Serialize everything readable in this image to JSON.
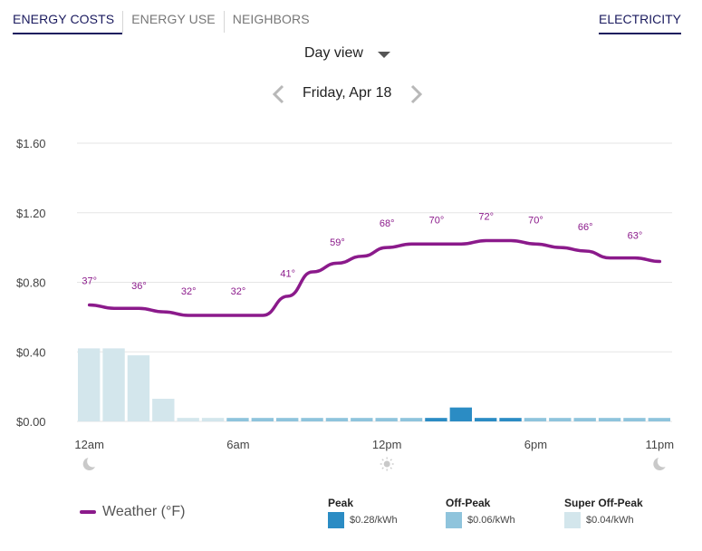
{
  "tabs": [
    {
      "label": "ENERGY COSTS",
      "active": true
    },
    {
      "label": "ENERGY USE",
      "active": false
    },
    {
      "label": "NEIGHBORS",
      "active": false
    }
  ],
  "fuel_tab": {
    "label": "ELECTRICITY",
    "active": true
  },
  "view_select": {
    "value": "Day view",
    "icon": "caret-down-icon"
  },
  "date_nav": {
    "date": "Friday, Apr 18",
    "prev_icon": "chevron-left-icon",
    "next_icon": "chevron-right-icon"
  },
  "legend": {
    "weather": {
      "label": "Weather (°F)",
      "color": "#8b1a8b"
    },
    "rates": [
      {
        "name": "Peak",
        "price": "$0.28/kWh",
        "color": "#2b8cc4"
      },
      {
        "name": "Off-Peak",
        "price": "$0.06/kWh",
        "color": "#8fc4dc"
      },
      {
        "name": "Super Off-Peak",
        "price": "$0.04/kWh",
        "color": "#d3e6ec"
      }
    ]
  },
  "chart_data": {
    "type": "bar",
    "y_ticks": [
      "$1.60",
      "$1.20",
      "$0.80",
      "$0.40",
      "$0.00"
    ],
    "ylim": [
      0,
      1.6
    ],
    "grid": true,
    "x_ticks": [
      {
        "label": "12am",
        "icon": "moon-icon",
        "hour": 0
      },
      {
        "label": "6am",
        "icon": "",
        "hour": 6
      },
      {
        "label": "12pm",
        "icon": "sun-icon",
        "hour": 12
      },
      {
        "label": "6pm",
        "icon": "",
        "hour": 18
      },
      {
        "label": "11pm",
        "icon": "moon-icon",
        "hour": 23
      }
    ],
    "bars": [
      {
        "hour": 0,
        "cost": 0.42,
        "rate": "Super Off-Peak"
      },
      {
        "hour": 1,
        "cost": 0.42,
        "rate": "Super Off-Peak"
      },
      {
        "hour": 2,
        "cost": 0.38,
        "rate": "Super Off-Peak"
      },
      {
        "hour": 3,
        "cost": 0.13,
        "rate": "Super Off-Peak"
      },
      {
        "hour": 4,
        "cost": 0.02,
        "rate": "Super Off-Peak"
      },
      {
        "hour": 5,
        "cost": 0.02,
        "rate": "Super Off-Peak"
      },
      {
        "hour": 6,
        "cost": 0.02,
        "rate": "Off-Peak"
      },
      {
        "hour": 7,
        "cost": 0.02,
        "rate": "Off-Peak"
      },
      {
        "hour": 8,
        "cost": 0.02,
        "rate": "Off-Peak"
      },
      {
        "hour": 9,
        "cost": 0.02,
        "rate": "Off-Peak"
      },
      {
        "hour": 10,
        "cost": 0.02,
        "rate": "Off-Peak"
      },
      {
        "hour": 11,
        "cost": 0.02,
        "rate": "Off-Peak"
      },
      {
        "hour": 12,
        "cost": 0.02,
        "rate": "Off-Peak"
      },
      {
        "hour": 13,
        "cost": 0.02,
        "rate": "Off-Peak"
      },
      {
        "hour": 14,
        "cost": 0.02,
        "rate": "Peak"
      },
      {
        "hour": 15,
        "cost": 0.08,
        "rate": "Peak"
      },
      {
        "hour": 16,
        "cost": 0.02,
        "rate": "Peak"
      },
      {
        "hour": 17,
        "cost": 0.02,
        "rate": "Peak"
      },
      {
        "hour": 18,
        "cost": 0.02,
        "rate": "Off-Peak"
      },
      {
        "hour": 19,
        "cost": 0.02,
        "rate": "Off-Peak"
      },
      {
        "hour": 20,
        "cost": 0.02,
        "rate": "Off-Peak"
      },
      {
        "hour": 21,
        "cost": 0.02,
        "rate": "Off-Peak"
      },
      {
        "hour": 22,
        "cost": 0.02,
        "rate": "Off-Peak"
      },
      {
        "hour": 23,
        "cost": 0.02,
        "rate": "Off-Peak"
      }
    ],
    "weather_line": [
      {
        "hour": 0,
        "y": 0.67
      },
      {
        "hour": 1,
        "y": 0.65
      },
      {
        "hour": 2,
        "y": 0.65
      },
      {
        "hour": 3,
        "y": 0.63
      },
      {
        "hour": 4,
        "y": 0.61
      },
      {
        "hour": 5,
        "y": 0.61
      },
      {
        "hour": 6,
        "y": 0.61
      },
      {
        "hour": 7,
        "y": 0.61
      },
      {
        "hour": 8,
        "y": 0.72
      },
      {
        "hour": 9,
        "y": 0.86
      },
      {
        "hour": 10,
        "y": 0.91
      },
      {
        "hour": 11,
        "y": 0.95
      },
      {
        "hour": 12,
        "y": 1.0
      },
      {
        "hour": 13,
        "y": 1.02
      },
      {
        "hour": 14,
        "y": 1.02
      },
      {
        "hour": 15,
        "y": 1.02
      },
      {
        "hour": 16,
        "y": 1.04
      },
      {
        "hour": 17,
        "y": 1.04
      },
      {
        "hour": 18,
        "y": 1.02
      },
      {
        "hour": 19,
        "y": 1.0
      },
      {
        "hour": 20,
        "y": 0.98
      },
      {
        "hour": 21,
        "y": 0.94
      },
      {
        "hour": 22,
        "y": 0.94
      },
      {
        "hour": 23,
        "y": 0.92
      }
    ],
    "temp_labels": [
      {
        "hour": 0,
        "text": "37°",
        "y": 0.79
      },
      {
        "hour": 2,
        "text": "36°",
        "y": 0.76
      },
      {
        "hour": 4,
        "text": "32°",
        "y": 0.73
      },
      {
        "hour": 6,
        "text": "32°",
        "y": 0.73
      },
      {
        "hour": 8,
        "text": "41°",
        "y": 0.83
      },
      {
        "hour": 10,
        "text": "59°",
        "y": 1.01
      },
      {
        "hour": 12,
        "text": "68°",
        "y": 1.12
      },
      {
        "hour": 14,
        "text": "70°",
        "y": 1.14
      },
      {
        "hour": 16,
        "text": "72°",
        "y": 1.16
      },
      {
        "hour": 18,
        "text": "70°",
        "y": 1.14
      },
      {
        "hour": 20,
        "text": "66°",
        "y": 1.1
      },
      {
        "hour": 22,
        "text": "63°",
        "y": 1.05
      }
    ]
  }
}
